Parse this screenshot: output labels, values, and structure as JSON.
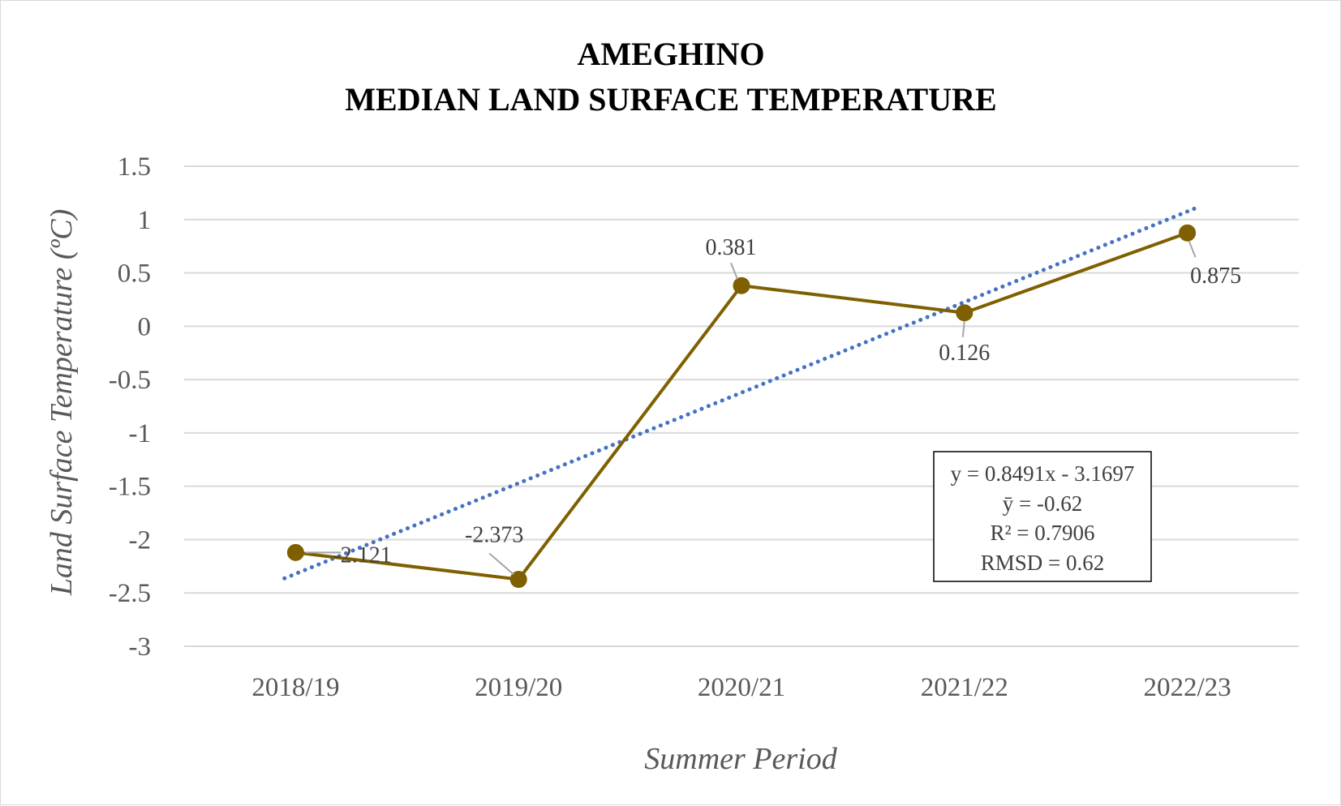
{
  "chart_data": {
    "type": "line",
    "title_lines": [
      "AMEGHINO",
      "MEDIAN LAND SURFACE TEMPERATURE"
    ],
    "xlabel": "Summer Period",
    "ylabel": "Land Surface Temperature (ºC)",
    "categories": [
      "2018/19",
      "2019/20",
      "2020/21",
      "2021/22",
      "2022/23"
    ],
    "series": [
      {
        "values": [
          -2.121,
          -2.373,
          0.381,
          0.126,
          0.875
        ],
        "data_labels": [
          "-2.121",
          "-2.373",
          "0.381",
          "0.126",
          "0.875"
        ],
        "color": "#7f6000"
      }
    ],
    "trendline": {
      "type": "linear",
      "slope": 0.8491,
      "intercept": -3.1697,
      "color": "#4472c4",
      "style": "dotted"
    },
    "stats_box": [
      "y = 0.8491x - 3.1697",
      "ȳ = -0.62",
      "R² = 0.7906",
      "RMSD = 0.62"
    ],
    "ylim": [
      -3,
      1.5
    ],
    "yticks": [
      1.5,
      1,
      0.5,
      0,
      -0.5,
      -1,
      -1.5,
      -2,
      -2.5,
      -3
    ],
    "ytick_labels": [
      "1.5",
      "1",
      "0.5",
      "0",
      "-0.5",
      "-1",
      "-1.5",
      "-2",
      "-2.5",
      "-3"
    ],
    "grid": true,
    "gridline_color": "#d9d9d9",
    "legend": "none"
  }
}
